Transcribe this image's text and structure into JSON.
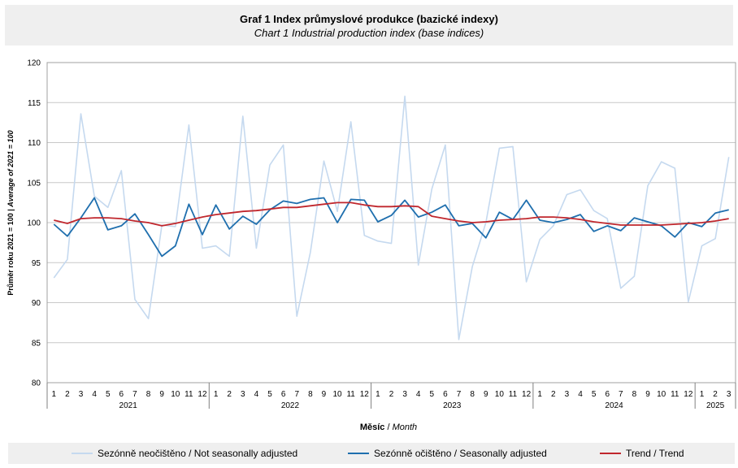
{
  "title": {
    "main": "Graf 1 Index průmyslové produkce (bazické indexy)",
    "sub": "Chart 1 Industrial production index (base indices)"
  },
  "colors": {
    "not_adjusted": "#c5d9ef",
    "seasonally_adjusted": "#1f6fae",
    "trend": "#c0272d",
    "grid": "#c8c8c8"
  },
  "chart_data": {
    "type": "line",
    "ylabel_main": "Průměr roku 2021 = 100 | ",
    "ylabel_italic": "Average of 2021 = 100",
    "xlabel_main": "Měsíc",
    "xlabel_italic": "Month",
    "ylim": [
      80,
      120
    ],
    "yticks": [
      80,
      85,
      90,
      95,
      100,
      105,
      110,
      115,
      120
    ],
    "grid": true,
    "legend_position": "bottom",
    "months": [
      1,
      2,
      3,
      4,
      5,
      6,
      7,
      8,
      9,
      10,
      11,
      12,
      1,
      2,
      3,
      4,
      5,
      6,
      7,
      8,
      9,
      10,
      11,
      12,
      1,
      2,
      3,
      4,
      5,
      6,
      7,
      8,
      9,
      10,
      11,
      12,
      1,
      2,
      3,
      4,
      5,
      6,
      7,
      8,
      9,
      10,
      11,
      12,
      1,
      2,
      3
    ],
    "years": [
      {
        "label": "2021",
        "count": 12
      },
      {
        "label": "2022",
        "count": 12
      },
      {
        "label": "2023",
        "count": 12
      },
      {
        "label": "2024",
        "count": 12
      },
      {
        "label": "2025",
        "count": 3
      }
    ],
    "series": [
      {
        "name": "Sezónně neočištěno / Not seasonally adjusted",
        "color_key": "not_adjusted",
        "values": [
          93.1,
          95.4,
          113.6,
          103.3,
          101.9,
          106.5,
          90.4,
          88.0,
          99.7,
          99.5,
          112.2,
          96.8,
          97.1,
          95.8,
          113.3,
          96.8,
          107.2,
          109.7,
          88.3,
          96.3,
          107.7,
          101.4,
          112.6,
          98.4,
          97.7,
          97.4,
          115.8,
          94.7,
          104.2,
          109.7,
          85.4,
          94.5,
          100.0,
          109.3,
          109.5,
          92.6,
          97.9,
          99.6,
          103.5,
          104.1,
          101.5,
          100.5,
          91.8,
          93.3,
          104.6,
          107.6,
          106.8,
          90.1,
          97.1,
          98.0,
          108.2
        ]
      },
      {
        "name": "Sezónně očištěno / Seasonally adjusted",
        "color_key": "seasonally_adjusted",
        "values": [
          99.8,
          98.3,
          100.6,
          103.1,
          99.1,
          99.6,
          101.1,
          98.5,
          95.8,
          97.1,
          102.3,
          98.5,
          102.2,
          99.2,
          100.8,
          99.8,
          101.6,
          102.7,
          102.4,
          102.9,
          103.1,
          100.0,
          102.9,
          102.8,
          100.1,
          100.9,
          102.8,
          100.7,
          101.3,
          102.2,
          99.6,
          99.9,
          98.1,
          101.3,
          100.4,
          102.8,
          100.3,
          100.0,
          100.4,
          101.0,
          98.9,
          99.6,
          99.0,
          100.6,
          100.1,
          99.6,
          98.2,
          100.0,
          99.5,
          101.2,
          101.6
        ]
      },
      {
        "name": "Trend / Trend",
        "color_key": "trend",
        "values": [
          100.3,
          99.9,
          100.5,
          100.6,
          100.6,
          100.5,
          100.2,
          100.0,
          99.6,
          99.9,
          100.3,
          100.7,
          101.0,
          101.2,
          101.4,
          101.5,
          101.7,
          101.9,
          101.9,
          102.1,
          102.3,
          102.5,
          102.5,
          102.2,
          102.0,
          102.0,
          102.1,
          102.0,
          100.8,
          100.5,
          100.2,
          100.0,
          100.1,
          100.3,
          100.4,
          100.5,
          100.7,
          100.7,
          100.6,
          100.4,
          100.1,
          99.9,
          99.7,
          99.7,
          99.7,
          99.7,
          99.8,
          99.9,
          100.0,
          100.2,
          100.5
        ]
      }
    ]
  }
}
